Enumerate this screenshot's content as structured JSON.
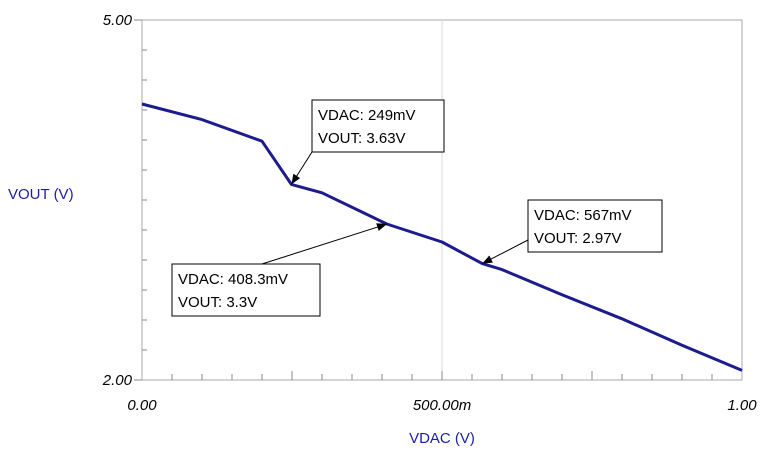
{
  "chart_data": {
    "type": "line",
    "title": "",
    "xlabel": "VDAC (V)",
    "ylabel": "VOUT (V)",
    "xlim": [
      0,
      1
    ],
    "ylim": [
      2,
      5
    ],
    "x_ticks": [
      {
        "value": 0,
        "label": "0.00"
      },
      {
        "value": 0.5,
        "label": "500.00m"
      },
      {
        "value": 1,
        "label": "1.00"
      }
    ],
    "y_ticks": [
      {
        "value": 5,
        "label": "5.00"
      },
      {
        "value": 2,
        "label": "2.00"
      }
    ],
    "grid": {
      "vertical_at": [
        0.5
      ]
    },
    "line_color": "#1c1c8c",
    "series": [
      {
        "x": [
          0,
          0.1,
          0.2,
          0.249,
          0.3,
          0.408,
          0.5,
          0.567,
          0.6,
          0.7,
          0.8,
          0.9,
          1.0
        ],
        "y": [
          4.3,
          4.17,
          3.99,
          3.63,
          3.56,
          3.3,
          3.15,
          2.97,
          2.92,
          2.71,
          2.51,
          2.29,
          2.08
        ]
      }
    ],
    "annotations": [
      {
        "x": 0.249,
        "y": 3.63,
        "lines": [
          "VDAC: 249mV",
          "VOUT: 3.63V"
        ]
      },
      {
        "x": 0.4083,
        "y": 3.3,
        "lines": [
          "VDAC: 408.3mV",
          "VOUT: 3.3V"
        ]
      },
      {
        "x": 0.567,
        "y": 2.97,
        "lines": [
          "VDAC: 567mV",
          "VOUT: 2.97V"
        ]
      }
    ]
  }
}
